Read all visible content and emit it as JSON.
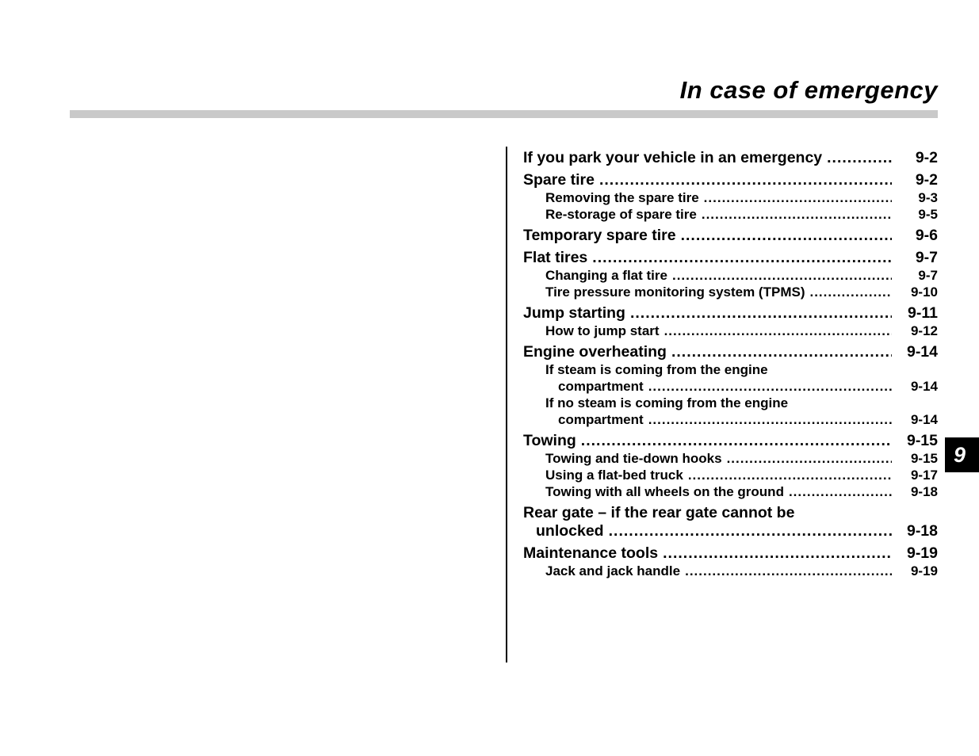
{
  "page": {
    "title": "In case of emergency",
    "chapter_tab": "9"
  },
  "colors": {
    "rule_gray": "#c9c9c9",
    "tab_bg": "#000000",
    "tab_text": "#ffffff"
  },
  "toc": {
    "entries": [
      {
        "level": 1,
        "label": "If you park your vehicle in an emergency",
        "page": "9-2"
      },
      {
        "level": 1,
        "label": "Spare tire",
        "page": "9-2"
      },
      {
        "level": 2,
        "label": "Removing the spare tire",
        "page": "9-3"
      },
      {
        "level": 2,
        "label": "Re-storage of spare tire",
        "page": "9-5"
      },
      {
        "level": 1,
        "label": "Temporary spare tire",
        "page": "9-6"
      },
      {
        "level": 1,
        "label": "Flat tires",
        "page": "9-7"
      },
      {
        "level": 2,
        "label": "Changing a flat tire",
        "page": "9-7"
      },
      {
        "level": 2,
        "label": "Tire pressure monitoring system (TPMS)",
        "page": "9-10"
      },
      {
        "level": 1,
        "label": "Jump starting",
        "page": "9-11"
      },
      {
        "level": 2,
        "label": "How to jump start",
        "page": "9-12"
      },
      {
        "level": 1,
        "label": "Engine overheating",
        "page": "9-14"
      },
      {
        "level": 2,
        "label": "If steam is coming from the engine",
        "label_line2": "compartment",
        "page": "9-14"
      },
      {
        "level": 2,
        "label": "If no steam is coming from the engine",
        "label_line2": "compartment",
        "page": "9-14"
      },
      {
        "level": 1,
        "label": "Towing",
        "page": "9-15"
      },
      {
        "level": 2,
        "label": "Towing and tie-down hooks",
        "page": "9-15"
      },
      {
        "level": 2,
        "label": "Using a flat-bed truck",
        "page": "9-17"
      },
      {
        "level": 2,
        "label": "Towing with all wheels on the ground",
        "page": "9-18"
      },
      {
        "level": 1,
        "label": "Rear gate – if the rear gate cannot be",
        "label_line2": "unlocked",
        "page": "9-18"
      },
      {
        "level": 1,
        "label": "Maintenance tools",
        "page": "9-19"
      },
      {
        "level": 2,
        "label": "Jack and jack handle",
        "page": "9-19"
      }
    ]
  }
}
